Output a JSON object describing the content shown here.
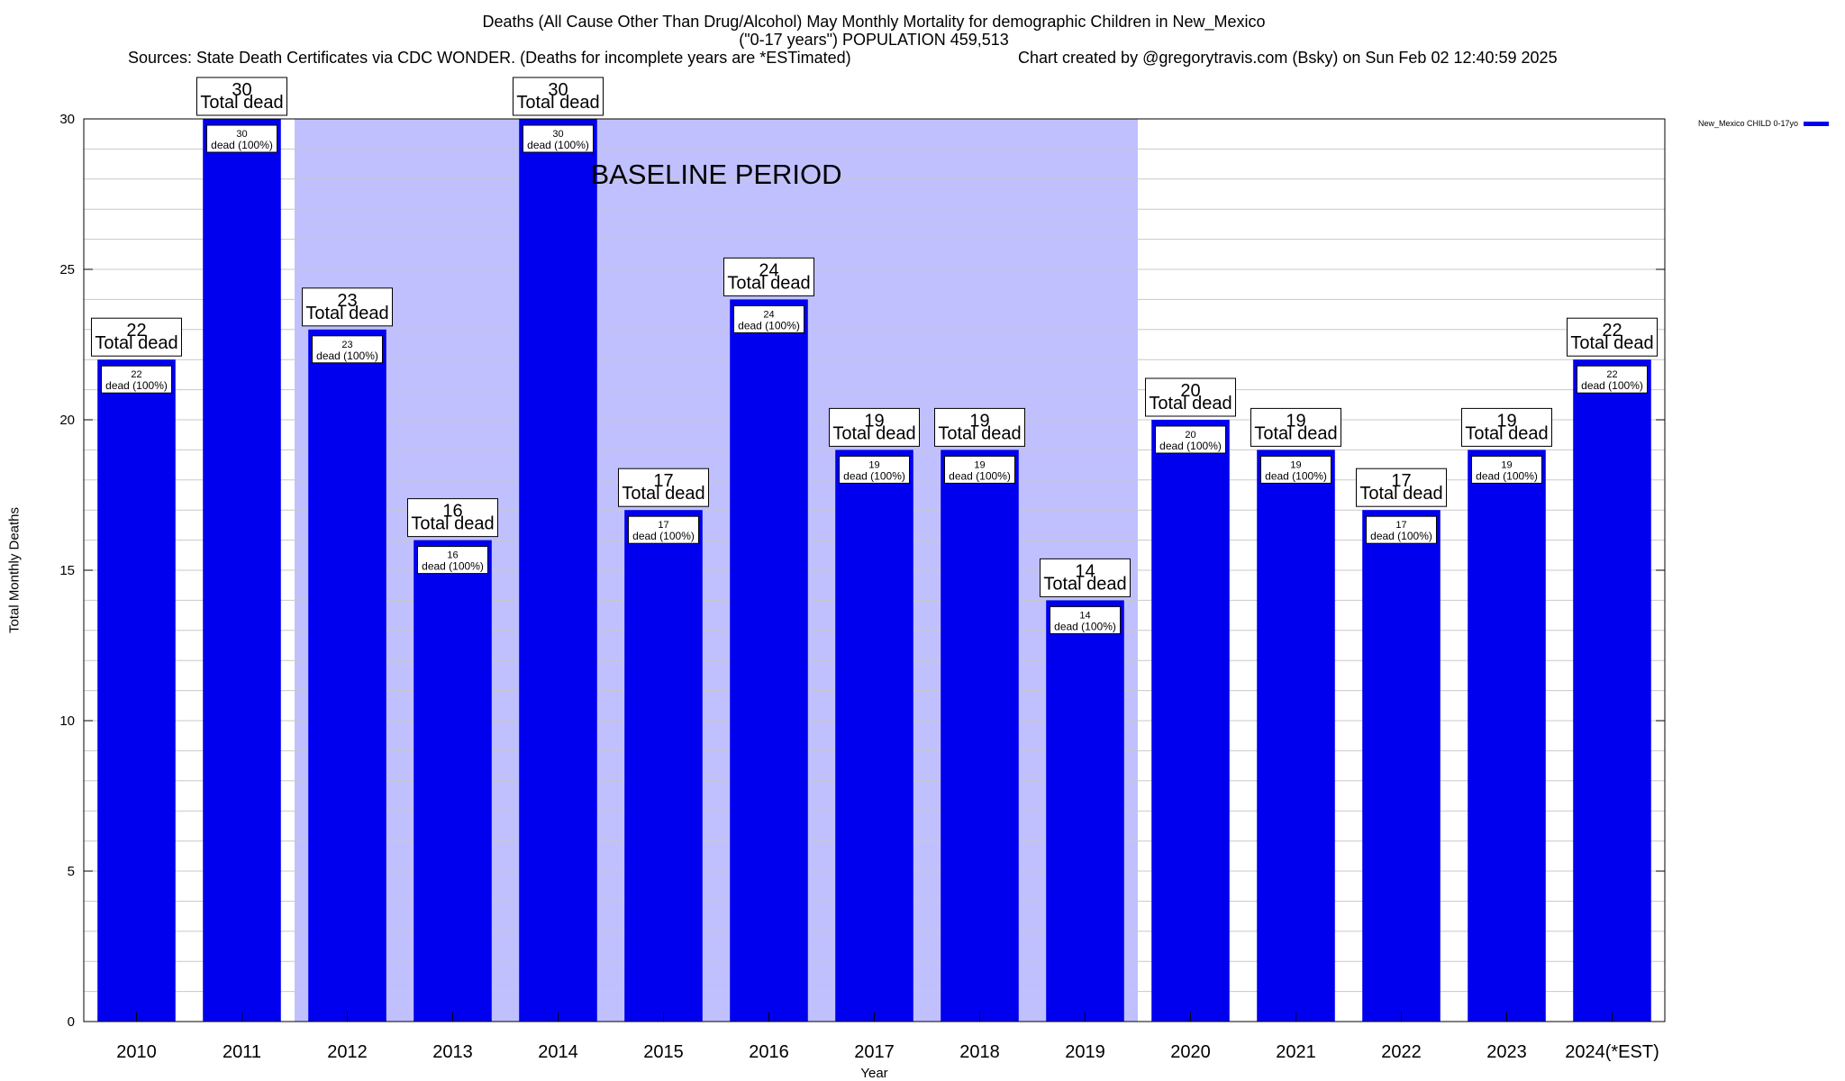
{
  "header": {
    "title_line1": "Deaths (All Cause Other Than Drug/Alcohol) May Monthly Mortality for demographic Children in New_Mexico",
    "title_line2": "(\"0-17 years\") POPULATION 459,513",
    "sources": "Sources: State Death Certificates via CDC WONDER. (Deaths for incomplete years are *ESTimated)",
    "credit": "Chart created by @gregorytravis.com (Bsky) on Sun Feb 02 12:40:59 2025"
  },
  "colors": {
    "bar": "#0000ee",
    "baseline_shade": "#c0c0ff",
    "grid": "#c8c8c8"
  },
  "chart_data": {
    "type": "bar",
    "title": "Deaths (All Cause Other Than Drug/Alcohol) May Monthly Mortality for demographic Children in New_Mexico",
    "xlabel": "Year",
    "ylabel": "Total Monthly Deaths",
    "ylim": [
      0,
      30
    ],
    "yticks": [
      0,
      5,
      10,
      15,
      20,
      25,
      30
    ],
    "grid": true,
    "categories": [
      "2010",
      "2011",
      "2012",
      "2013",
      "2014",
      "2015",
      "2016",
      "2017",
      "2018",
      "2019",
      "2020",
      "2021",
      "2022",
      "2023",
      "2024(*EST)"
    ],
    "series": [
      {
        "name": "New_Mexico CHILD 0-17yo",
        "values": [
          22,
          30,
          23,
          16,
          30,
          17,
          24,
          19,
          19,
          14,
          20,
          19,
          17,
          19,
          22
        ]
      }
    ],
    "top_label_text": "Total dead",
    "inner_label_text": "dead (100%)",
    "baseline_period": {
      "label": "BASELINE PERIOD",
      "start": "2012",
      "end": "2019"
    },
    "legend_position": "top-right"
  }
}
